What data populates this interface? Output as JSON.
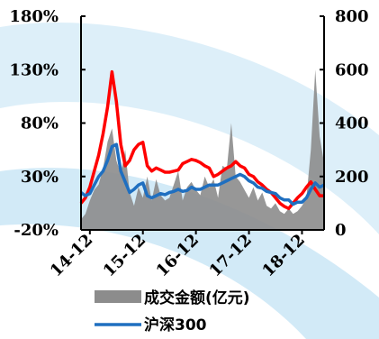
{
  "chart_data": {
    "type": "line",
    "x_ticks": [
      "14-12",
      "15-12",
      "16-12",
      "17-12",
      "18-12"
    ],
    "y_left": {
      "ticks": [
        "180%",
        "130%",
        "80%",
        "30%",
        "-20%"
      ],
      "lim": [
        -20,
        180
      ],
      "unit": "%"
    },
    "y_right": {
      "ticks": [
        "800",
        "600",
        "400",
        "200",
        "0"
      ],
      "lim": [
        0,
        800
      ]
    },
    "x_range": [
      "2014-10",
      "2019-05"
    ],
    "legend": [
      {
        "name": "成交金额(亿元)",
        "color": "#8c8c8c",
        "kind": "area"
      },
      {
        "name": "沪深300",
        "color": "#1f6fc0",
        "kind": "line"
      }
    ],
    "series": [
      {
        "name": "成交金额(亿元)",
        "axis": "right",
        "color": "#8c8c8c",
        "x": [
          "2014-10",
          "2014-11",
          "2014-12",
          "2015-01",
          "2015-02",
          "2015-03",
          "2015-04",
          "2015-05",
          "2015-06",
          "2015-07",
          "2015-08",
          "2015-09",
          "2015-10",
          "2015-11",
          "2015-12",
          "2016-01",
          "2016-02",
          "2016-03",
          "2016-04",
          "2016-05",
          "2016-06",
          "2016-07",
          "2016-08",
          "2016-09",
          "2016-10",
          "2016-11",
          "2016-12",
          "2017-01",
          "2017-02",
          "2017-03",
          "2017-04",
          "2017-05",
          "2017-06",
          "2017-07",
          "2017-08",
          "2017-09",
          "2017-10",
          "2017-11",
          "2017-12",
          "2018-01",
          "2018-02",
          "2018-03",
          "2018-04",
          "2018-05",
          "2018-06",
          "2018-07",
          "2018-08",
          "2018-09",
          "2018-10",
          "2018-11",
          "2018-12",
          "2019-01",
          "2019-02",
          "2019-03",
          "2019-04",
          "2019-05"
        ],
        "values": [
          40,
          60,
          110,
          150,
          170,
          230,
          330,
          380,
          260,
          210,
          300,
          140,
          90,
          160,
          120,
          200,
          110,
          190,
          130,
          110,
          120,
          170,
          220,
          110,
          160,
          180,
          150,
          130,
          200,
          160,
          190,
          120,
          240,
          230,
          400,
          200,
          180,
          150,
          120,
          160,
          110,
          140,
          90,
          80,
          100,
          70,
          60,
          80,
          60,
          70,
          90,
          120,
          300,
          600,
          350,
          250
        ]
      },
      {
        "name": "沪深300",
        "axis": "left",
        "color": "#1f6fc0",
        "x": [
          "2014-10",
          "2014-11",
          "2014-12",
          "2015-01",
          "2015-02",
          "2015-03",
          "2015-04",
          "2015-05",
          "2015-06",
          "2015-07",
          "2015-08",
          "2015-09",
          "2015-10",
          "2015-11",
          "2015-12",
          "2016-01",
          "2016-02",
          "2016-03",
          "2016-04",
          "2016-05",
          "2016-06",
          "2016-07",
          "2016-08",
          "2016-09",
          "2016-10",
          "2016-11",
          "2016-12",
          "2017-01",
          "2017-02",
          "2017-03",
          "2017-04",
          "2017-05",
          "2017-06",
          "2017-07",
          "2017-08",
          "2017-09",
          "2017-10",
          "2017-11",
          "2017-12",
          "2018-01",
          "2018-02",
          "2018-03",
          "2018-04",
          "2018-05",
          "2018-06",
          "2018-07",
          "2018-08",
          "2018-09",
          "2018-10",
          "2018-11",
          "2018-12",
          "2019-01",
          "2019-02",
          "2019-03",
          "2019-04",
          "2019-05"
        ],
        "values": [
          15,
          12,
          14,
          22,
          30,
          35,
          45,
          58,
          60,
          35,
          25,
          15,
          18,
          22,
          24,
          12,
          10,
          12,
          14,
          13,
          15,
          16,
          18,
          16,
          17,
          20,
          18,
          18,
          20,
          22,
          22,
          22,
          24,
          26,
          28,
          30,
          32,
          30,
          26,
          24,
          20,
          19,
          16,
          15,
          14,
          10,
          8,
          8,
          4,
          6,
          6,
          10,
          18,
          24,
          20,
          22
        ]
      },
      {
        "name": "red",
        "axis": "left",
        "color": "#ff0000",
        "x": [
          "2014-10",
          "2014-11",
          "2014-12",
          "2015-01",
          "2015-02",
          "2015-03",
          "2015-04",
          "2015-05",
          "2015-06",
          "2015-07",
          "2015-08",
          "2015-09",
          "2015-10",
          "2015-11",
          "2015-12",
          "2016-01",
          "2016-02",
          "2016-03",
          "2016-04",
          "2016-05",
          "2016-06",
          "2016-07",
          "2016-08",
          "2016-09",
          "2016-10",
          "2016-11",
          "2016-12",
          "2017-01",
          "2017-02",
          "2017-03",
          "2017-04",
          "2017-05",
          "2017-06",
          "2017-07",
          "2017-08",
          "2017-09",
          "2017-10",
          "2017-11",
          "2017-12",
          "2018-01",
          "2018-02",
          "2018-03",
          "2018-04",
          "2018-05",
          "2018-06",
          "2018-07",
          "2018-08",
          "2018-09",
          "2018-10",
          "2018-11",
          "2018-12",
          "2019-01",
          "2019-02",
          "2019-03",
          "2019-04",
          "2019-05"
        ],
        "values": [
          5,
          10,
          20,
          35,
          50,
          70,
          95,
          128,
          100,
          60,
          40,
          45,
          55,
          60,
          62,
          40,
          35,
          38,
          36,
          34,
          34,
          35,
          36,
          42,
          44,
          46,
          45,
          43,
          40,
          38,
          30,
          32,
          35,
          38,
          40,
          44,
          40,
          38,
          32,
          30,
          25,
          22,
          18,
          15,
          10,
          5,
          2,
          0,
          5,
          10,
          14,
          20,
          25,
          18,
          12,
          12
        ]
      }
    ]
  }
}
